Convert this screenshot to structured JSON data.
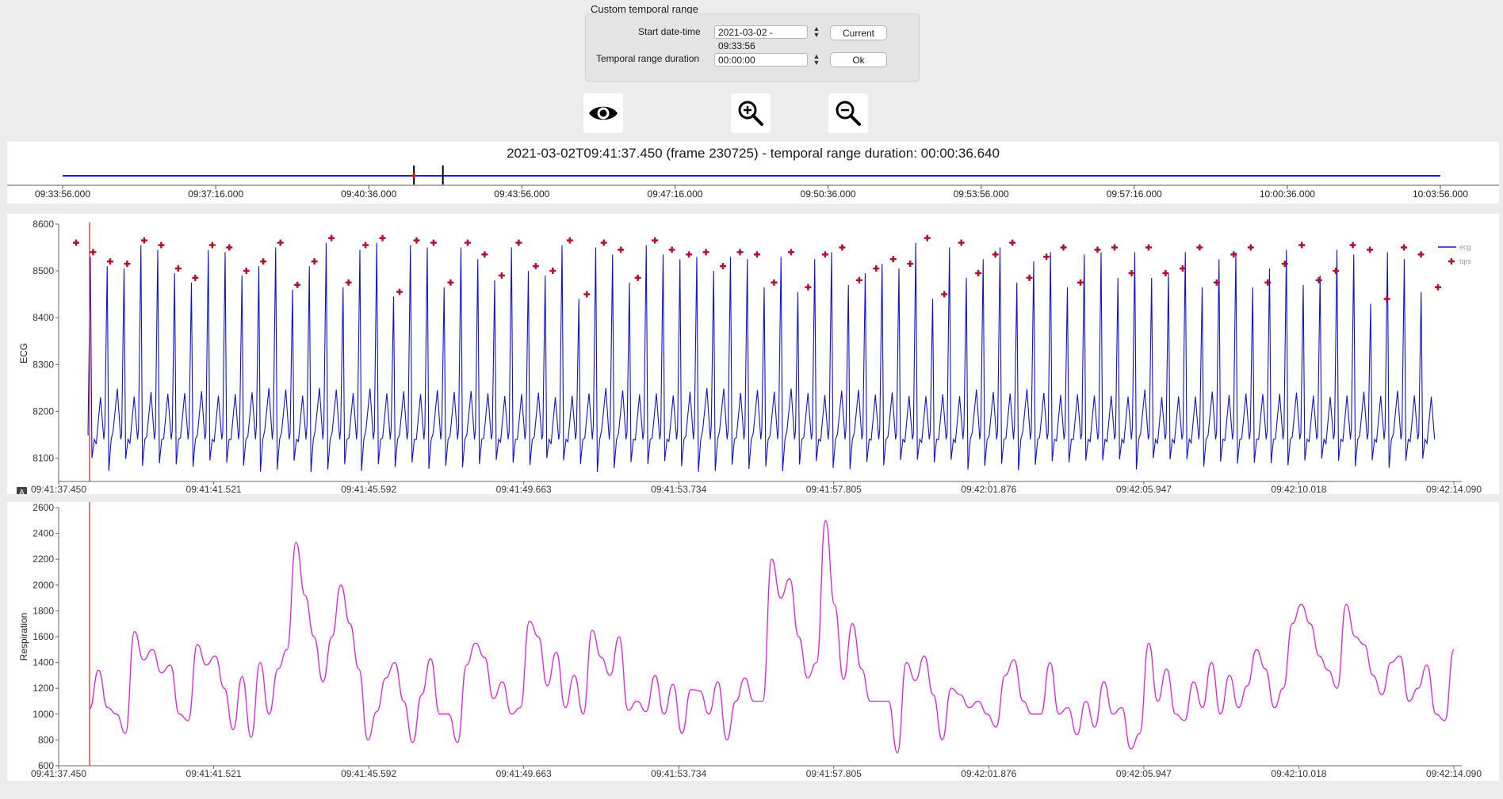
{
  "range": {
    "title": "Custom temporal range",
    "start_label": "Start date-time",
    "start_value": "2021-03-02 - 09:33:56",
    "duration_label": "Temporal range duration",
    "duration_value": "00:00:00",
    "current_button": "Current",
    "ok_button": "Ok"
  },
  "toolbar": {
    "eye_icon": "eye-icon",
    "zoom_in_icon": "zoom-in-icon",
    "zoom_out_icon": "zoom-out-icon"
  },
  "timeline": {
    "title": "2021-03-02T09:41:37.450 (frame 230725) - temporal range duration: 00:00:36.640",
    "ticks": [
      "09:33:56.000",
      "09:37:16.000",
      "09:40:36.000",
      "09:43:56.000",
      "09:47:16.000",
      "09:50:36.000",
      "09:53:56.000",
      "09:57:16.000",
      "10:00:36.000",
      "10:03:56.000"
    ],
    "line_color": "#1a1ae6",
    "cursor_fraction": 0.255,
    "window_end_fraction": 0.276
  },
  "ecg_panel": {
    "ylabel": "ECG",
    "yticks": [
      "8600",
      "8500",
      "8400",
      "8300",
      "8200",
      "8100"
    ],
    "xticks": [
      "09:41:37.450",
      "09:41:41.521",
      "09:41:45.592",
      "09:41:49.663",
      "09:41:53.734",
      "09:41:57.805",
      "09:42:01.876",
      "09:42:05.947",
      "09:42:10.018",
      "09:42:14.090"
    ],
    "legend": [
      "ecg",
      "tqrs"
    ],
    "badge": "A",
    "line_color": "#1010d8",
    "marker_color": "#b0102a"
  },
  "resp_panel": {
    "ylabel": "Respiration",
    "yticks": [
      "2600",
      "2400",
      "2200",
      "2000",
      "1800",
      "1600",
      "1400",
      "1200",
      "1000",
      "800",
      "600"
    ],
    "xticks": [
      "09:41:37.450",
      "09:41:41.521",
      "09:41:45.592",
      "09:41:49.663",
      "09:41:53.734",
      "09:41:57.805",
      "09:42:01.876",
      "09:42:05.947",
      "09:42:10.018",
      "09:42:14.090"
    ],
    "line_color": "#e020e0"
  },
  "cursor_color": "#ff2020",
  "chart_data": [
    {
      "type": "line",
      "ylabel": "ECG",
      "ylim": [
        8050,
        8600
      ],
      "xlim": [
        "09:41:37.450",
        "09:42:14.090"
      ],
      "series": [
        {
          "name": "ecg",
          "values_note": "R-peak amplitudes",
          "values": [
            8530,
            8510,
            8505,
            8555,
            8545,
            8495,
            8475,
            8545,
            8540,
            8490,
            8510,
            8550,
            8460,
            8510,
            8560,
            8465,
            8545,
            8560,
            8445,
            8555,
            8550,
            8465,
            8550,
            8525,
            8480,
            8550,
            8500,
            8490,
            8555,
            8440,
            8550,
            8535,
            8475,
            8555,
            8535,
            8525,
            8530,
            8500,
            8530,
            8525,
            8465,
            8530,
            8455,
            8525,
            8540,
            8470,
            8495,
            8515,
            8505,
            8560,
            8440,
            8550,
            8485,
            8525,
            8550,
            8475,
            8520,
            8540,
            8465,
            8535,
            8540,
            8485,
            8540,
            8485,
            8495,
            8540,
            8465,
            8525,
            8540,
            8465,
            8505,
            8545,
            8470,
            8490,
            8545,
            8535,
            8430,
            8540,
            8525,
            8455
          ]
        },
        {
          "name": "tqrs",
          "values": [
            8550,
            8530,
            8510,
            8505,
            8555,
            8545,
            8495,
            8475,
            8545,
            8540,
            8490,
            8510,
            8550,
            8460,
            8510,
            8560,
            8465,
            8545,
            8560,
            8445,
            8555,
            8550,
            8465,
            8550,
            8525,
            8480,
            8550,
            8500,
            8490,
            8555,
            8440,
            8550,
            8535,
            8475,
            8555,
            8535,
            8525,
            8530,
            8500,
            8530,
            8525,
            8465,
            8530,
            8455,
            8525,
            8540,
            8470,
            8495,
            8515,
            8505,
            8560,
            8440,
            8550,
            8485,
            8525,
            8550,
            8475,
            8520,
            8540,
            8465,
            8535,
            8540,
            8485,
            8540,
            8485,
            8495,
            8540,
            8465,
            8525,
            8540,
            8465,
            8505,
            8545,
            8470,
            8490,
            8545,
            8535,
            8430,
            8540,
            8525,
            8455
          ]
        }
      ]
    },
    {
      "type": "line",
      "ylabel": "Respiration",
      "ylim": [
        600,
        2600
      ],
      "xlim": [
        "09:41:37.450",
        "09:42:14.090"
      ],
      "series": [
        {
          "name": "Respiration",
          "values": [
            1040,
            1340,
            1050,
            1000,
            850,
            1640,
            1420,
            1500,
            1320,
            1380,
            1000,
            950,
            1540,
            1380,
            1450,
            1200,
            880,
            1290,
            820,
            1400,
            1000,
            1350,
            1500,
            2330,
            1920,
            1600,
            1250,
            1600,
            2000,
            1700,
            1350,
            800,
            1020,
            1280,
            1400,
            1100,
            780,
            1150,
            1430,
            1000,
            1000,
            780,
            1380,
            1550,
            1440,
            1120,
            1250,
            1000,
            1050,
            1720,
            1600,
            1220,
            1480,
            1050,
            1300,
            1000,
            1650,
            1440,
            1300,
            1600,
            1030,
            1100,
            1020,
            1300,
            1000,
            1230,
            850,
            1190,
            1180,
            1000,
            1250,
            800,
            1100,
            1280,
            1100,
            1100,
            2200,
            1900,
            2050,
            1600,
            1280,
            1400,
            2500,
            1850,
            1270,
            1700,
            1350,
            1100,
            1100,
            1100,
            700,
            1400,
            1260,
            1450,
            1150,
            800,
            1200,
            1150,
            1050,
            1100,
            1000,
            900,
            1300,
            1420,
            1100,
            1000,
            1000,
            1400,
            1000,
            1050,
            840,
            1100,
            900,
            1250,
            1000,
            1050,
            730,
            850,
            1550,
            1100,
            1350,
            1000,
            950,
            1250,
            1050,
            1400,
            1000,
            1300,
            1050,
            1220,
            1500,
            1350,
            1050,
            1200,
            1700,
            1850,
            1700,
            1450,
            1340,
            1200,
            1850,
            1600,
            1540,
            1300,
            1150,
            1400,
            1450,
            1100,
            1200,
            1380,
            1000,
            950,
            1500
          ]
        }
      ]
    }
  ]
}
